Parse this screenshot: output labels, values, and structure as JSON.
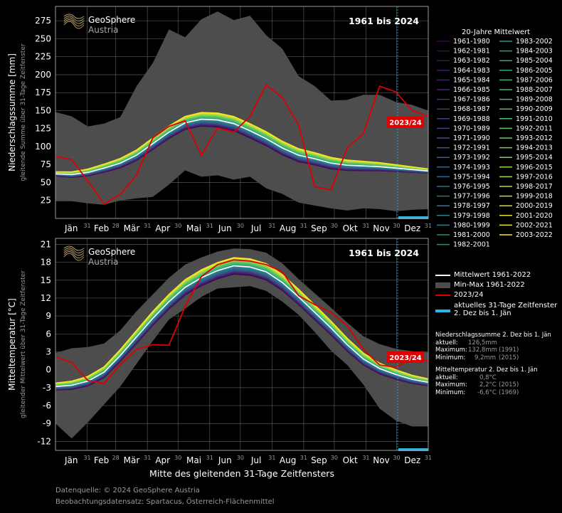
{
  "chart_data": [
    {
      "type": "line",
      "ylabel": "Niederschlagssumme [mm]",
      "ylabel2": "gleitende Summe über 31-Tage Zeitfenster",
      "badge": "1961 bis 2024",
      "ylim": [
        0,
        295
      ],
      "yticks": [
        25,
        50,
        75,
        100,
        125,
        150,
        175,
        200,
        225,
        250,
        275
      ],
      "months": [
        "Jän",
        "Feb",
        "Mär",
        "Apr",
        "Mai",
        "Jun",
        "Jul",
        "Aug",
        "Sep",
        "Okt",
        "Nov",
        "Dez"
      ],
      "month_ends": [
        "31",
        "28",
        "31",
        "30",
        "31",
        "30",
        "31",
        "31",
        "30",
        "31",
        "30",
        "31"
      ],
      "x": [
        1,
        2,
        3,
        4,
        5,
        6,
        7,
        8,
        9,
        10,
        11,
        12,
        13,
        14,
        15,
        16,
        17,
        18,
        19,
        20,
        21,
        22,
        23,
        24
      ],
      "mean_1961_2022": [
        62,
        61,
        64,
        70,
        77,
        88,
        104,
        120,
        133,
        138,
        137,
        132,
        122,
        111,
        98,
        88,
        83,
        77,
        74,
        73,
        72,
        70,
        68,
        66
      ],
      "min_1961_2022": [
        24,
        24,
        21,
        19,
        25,
        28,
        30,
        47,
        67,
        58,
        60,
        54,
        58,
        42,
        34,
        22,
        18,
        14,
        11,
        14,
        13,
        10,
        12,
        13
      ],
      "max_1961_2022": [
        148,
        142,
        128,
        132,
        141,
        184,
        216,
        263,
        252,
        277,
        288,
        276,
        282,
        255,
        236,
        198,
        184,
        164,
        165,
        172,
        172,
        162,
        158,
        150
      ],
      "current_2023_24": [
        86,
        82,
        52,
        20,
        34,
        60,
        112,
        128,
        136,
        88,
        126,
        120,
        142,
        186,
        168,
        130,
        44,
        40,
        98,
        118,
        184,
        176,
        150,
        142
      ],
      "current_label": "2023/24"
    },
    {
      "type": "line",
      "ylabel": "Mitteltemperatur [°C]",
      "ylabel2": "gleitender Mittelwert über 31-Tage Zeitfenster",
      "badge": "1961 bis 2024",
      "ylim": [
        -13.5,
        22
      ],
      "yticks": [
        -12,
        -9,
        -6,
        -3,
        0,
        3,
        6,
        9,
        12,
        15,
        18,
        21
      ],
      "xlabel": "Mitte des gleitenden 31-Tage Zeitfensters",
      "x": [
        1,
        2,
        3,
        4,
        5,
        6,
        7,
        8,
        9,
        10,
        11,
        12,
        13,
        14,
        15,
        16,
        17,
        18,
        19,
        20,
        21,
        22,
        23,
        24
      ],
      "mean_1961_2022": [
        -2.8,
        -2.6,
        -1.9,
        -0.4,
        2.4,
        5.5,
        8.6,
        11.4,
        13.8,
        15.4,
        16.6,
        17.4,
        17.2,
        16.4,
        14.6,
        12.2,
        9.6,
        7.0,
        4.2,
        1.8,
        0.2,
        -0.8,
        -1.6,
        -2.1
      ],
      "min_1961_2022": [
        -9.0,
        -11.5,
        -8.8,
        -5.8,
        -2.8,
        1.0,
        4.8,
        8.4,
        10.2,
        12.2,
        13.6,
        13.8,
        14.0,
        13.2,
        11.4,
        9.2,
        6.3,
        3.2,
        0.8,
        -2.5,
        -6.5,
        -8.5,
        -9.5,
        -9.5
      ],
      "max_1961_2022": [
        2.8,
        3.6,
        3.8,
        4.4,
        6.6,
        9.8,
        12.6,
        15.4,
        17.6,
        18.8,
        19.8,
        20.3,
        20.2,
        19.6,
        17.8,
        15.2,
        12.8,
        10.4,
        7.9,
        5.6,
        4.3,
        3.5,
        3.1,
        2.9
      ],
      "current_2023_24": [
        2.2,
        1.2,
        -1.8,
        -2.3,
        0.9,
        3.4,
        4.2,
        4.1,
        10.6,
        15.6,
        17.6,
        18.4,
        18.2,
        17.6,
        16.4,
        12.4,
        10.9,
        9.6,
        7.4,
        3.4,
        0.8,
        0.4,
        1.9,
        1.5
      ],
      "current_label": "2023/24"
    }
  ],
  "logo": {
    "line1": "GeoSphere",
    "line2": "Austria"
  },
  "legend": {
    "title": "20-Jahre Mittelwert",
    "periods": [
      "1961-1980",
      "1962-1981",
      "1963-1982",
      "1964-1983",
      "1965-1984",
      "1966-1985",
      "1967-1986",
      "1968-1987",
      "1969-1988",
      "1970-1989",
      "1971-1990",
      "1972-1991",
      "1973-1992",
      "1974-1993",
      "1975-1994",
      "1976-1995",
      "1977-1996",
      "1978-1997",
      "1979-1998",
      "1980-1999",
      "1981-2000",
      "1982-2001",
      "1983-2002",
      "1984-2003",
      "1985-2004",
      "1986-2005",
      "1987-2006",
      "1988-2007",
      "1989-2008",
      "1990-2009",
      "1991-2010",
      "1992-2011",
      "1993-2012",
      "1994-2013",
      "1995-2014",
      "1996-2015",
      "1997-2016",
      "1998-2017",
      "1999-2018",
      "2000-2019",
      "2001-2020",
      "2002-2021",
      "2003-2022"
    ],
    "mean_label": "Mittelwert 1961-2022",
    "minmax_label": "Min-Max 1961-2022",
    "current_label": "2023/24",
    "window_label_1": "aktuelles 31-Tage Zeitfenster",
    "window_label_2": "2. Dez bis 1. Jän"
  },
  "stats": {
    "precip_title": "Niederschlagssumme 2. Dez bis 1. Jän",
    "temp_title": "Mitteltemperatur 2. Dez bis 1. Jän",
    "aktuell": "aktuell:",
    "maximum": "Maximum:",
    "minimum": "Minimum:",
    "p_akt": "126,5mm",
    "p_max": "132,8mm",
    "p_max_year": "(1991)",
    "p_min": "9,2mm",
    "p_min_year": "(2015)",
    "t_akt": "0,8°C",
    "t_max": "2,2°C",
    "t_max_year": "(2015)",
    "t_min": "-6,6°C",
    "t_min_year": "(1969)"
  },
  "footer": {
    "source": "Datenquelle: © 2024 GeoSphere Austria",
    "dataset": "Beobachtungsdatensatz: Spartacus, Österreich-Flächenmittel"
  },
  "colors": {
    "background": "#000000",
    "minmax": "#4d4d4d",
    "current": "#dd0000",
    "mean": "#ffffff",
    "window": "#29b6e8",
    "grid": "#555555"
  }
}
